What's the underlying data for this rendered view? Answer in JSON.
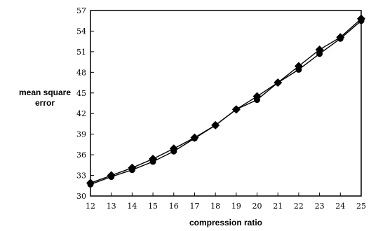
{
  "chart_data": {
    "type": "line",
    "xlabel": "compression ratio",
    "ylabel": [
      "mean square",
      "error"
    ],
    "x": [
      12,
      13,
      14,
      15,
      16,
      17,
      18,
      19,
      20,
      21,
      22,
      23,
      24,
      25
    ],
    "x_tick_labels": [
      "12",
      "13",
      "14",
      "15",
      "16",
      "17",
      "18",
      "19",
      "20",
      "21",
      "22",
      "23",
      "24",
      "25"
    ],
    "y_ticks": [
      30,
      33,
      36,
      39,
      42,
      45,
      48,
      51,
      54,
      57
    ],
    "xlim": [
      12,
      25
    ],
    "ylim": [
      30,
      57
    ],
    "grid": false,
    "legend": "none",
    "series": [
      {
        "values": [
          31.9,
          33.0,
          34.1,
          35.4,
          36.9,
          38.5,
          40.3,
          42.6,
          44.5,
          46.5,
          48.9,
          51.3,
          53.1,
          55.8
        ],
        "marker": "diamond",
        "color": "#000000"
      },
      {
        "values": [
          31.7,
          32.8,
          33.8,
          35.0,
          36.5,
          38.4,
          40.3,
          42.6,
          44.0,
          46.5,
          48.4,
          50.7,
          52.9,
          55.5
        ],
        "marker": "circle",
        "color": "#000000"
      }
    ]
  }
}
